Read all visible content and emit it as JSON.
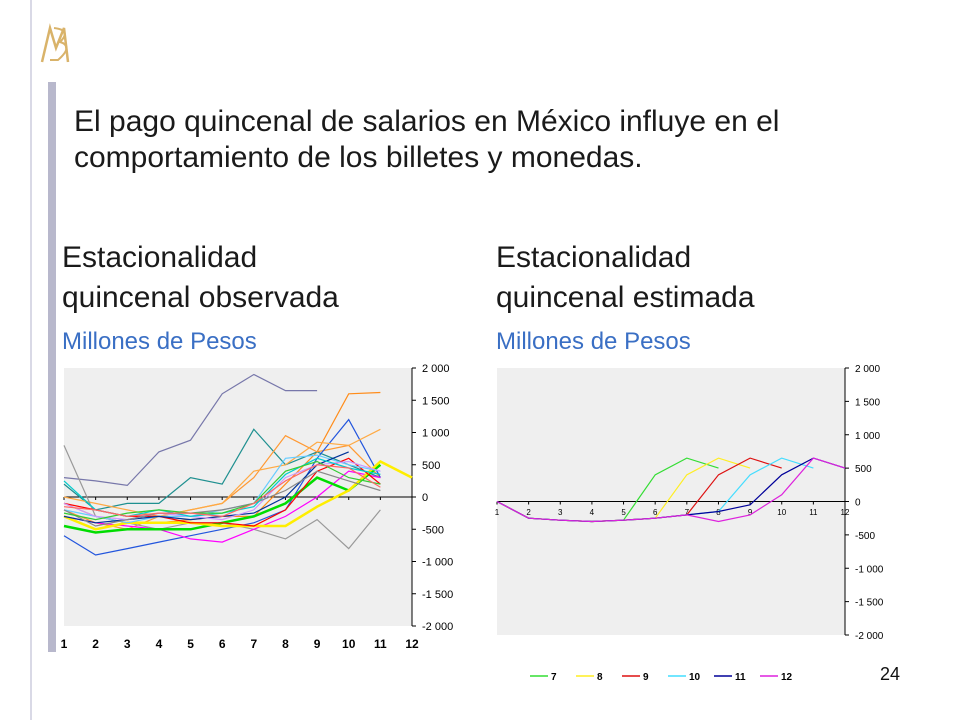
{
  "title": "El pago quincenal de salarios en México influye en el comportamiento de los billetes y monedas.",
  "left": {
    "subtitle_line1": "Estacionalidad",
    "subtitle_line2": "quincenal observada",
    "unit": "Millones de Pesos"
  },
  "right": {
    "subtitle_line1": "Estacionalidad",
    "subtitle_line2": "quincenal estimada",
    "unit": "Millones de Pesos"
  },
  "page_number": "24",
  "chart_data": [
    {
      "type": "line",
      "x": [
        1,
        2,
        3,
        4,
        5,
        6,
        7,
        8,
        9,
        10,
        11,
        12
      ],
      "ylim": [
        -2000,
        2000
      ],
      "yticks": [
        -2000,
        -1500,
        -1000,
        -500,
        0,
        500,
        1000,
        1500,
        2000
      ],
      "ytick_labels": [
        "-2 000",
        "-1 500",
        "-1 000",
        "-500",
        "0",
        "500",
        "1 000",
        "1 500",
        "2 000"
      ],
      "xtick_labels": [
        "1",
        "2",
        "3",
        "4",
        "5",
        "6",
        "7",
        "8",
        "9",
        "10",
        "11",
        "12"
      ],
      "grid": false,
      "series": [
        {
          "color": "#7777aa",
          "values": [
            300,
            250,
            180,
            700,
            880,
            1600,
            1900,
            1650,
            1650,
            null,
            null,
            null
          ]
        },
        {
          "color": "#ff8c1a",
          "values": [
            -100,
            -300,
            -400,
            -400,
            -350,
            -300,
            -300,
            200,
            700,
            1600,
            1620,
            null
          ]
        },
        {
          "color": "#1f9090",
          "values": [
            200,
            -200,
            -100,
            -100,
            300,
            200,
            1050,
            500,
            700,
            500,
            300,
            null
          ]
        },
        {
          "color": "#ff9933",
          "values": [
            -200,
            -400,
            -500,
            -300,
            -200,
            -100,
            300,
            950,
            700,
            800,
            300,
            null
          ]
        },
        {
          "color": "#2255dd",
          "values": [
            -600,
            -900,
            -800,
            -700,
            -600,
            -500,
            -400,
            -200,
            600,
            1200,
            300,
            null
          ]
        },
        {
          "color": "#ffaa44",
          "values": [
            0,
            -100,
            -200,
            -300,
            -200,
            -100,
            400,
            500,
            850,
            800,
            1050,
            null
          ]
        },
        {
          "color": "#999999",
          "values": [
            800,
            -300,
            -400,
            -500,
            -400,
            -400,
            -500,
            -650,
            -350,
            -800,
            -200,
            null
          ]
        },
        {
          "color": "#ff00ff",
          "values": [
            -300,
            -400,
            -450,
            -500,
            -650,
            -700,
            -500,
            -300,
            0,
            400,
            300,
            null
          ]
        },
        {
          "color": "#00dd00",
          "values": [
            -450,
            -550,
            -500,
            -500,
            -500,
            -400,
            -300,
            -100,
            300,
            100,
            500,
            null
          ]
        },
        {
          "color": "#ffee00",
          "values": [
            -300,
            -500,
            -400,
            -400,
            -400,
            -450,
            -450,
            -450,
            -150,
            100,
            550,
            300
          ]
        },
        {
          "color": "#ff0000",
          "values": [
            -100,
            -200,
            -300,
            -300,
            -400,
            -400,
            -450,
            -200,
            400,
            600,
            200,
            null
          ]
        },
        {
          "color": "#66ccff",
          "values": [
            -200,
            -300,
            -400,
            -300,
            -300,
            -200,
            -100,
            600,
            650,
            500,
            400,
            null
          ]
        },
        {
          "color": "#003399",
          "values": [
            -300,
            -400,
            -350,
            -300,
            -350,
            -300,
            -250,
            0,
            500,
            700,
            null,
            null
          ]
        },
        {
          "color": "#cc99ff",
          "values": [
            -100,
            -300,
            -350,
            -250,
            -300,
            -350,
            -200,
            300,
            500,
            550,
            400,
            null
          ]
        },
        {
          "color": "#888888",
          "values": [
            -200,
            -450,
            -350,
            -250,
            -250,
            -200,
            -100,
            100,
            400,
            250,
            100,
            null
          ]
        },
        {
          "color": "#00cccc",
          "values": [
            250,
            -200,
            -300,
            -200,
            -300,
            -250,
            -150,
            350,
            600,
            450,
            350,
            null
          ]
        },
        {
          "color": "#33cc33",
          "values": [
            -250,
            -350,
            -250,
            -200,
            -250,
            -250,
            -100,
            400,
            550,
            300,
            200,
            null
          ]
        },
        {
          "color": "#ff6666",
          "values": [
            -150,
            -200,
            -300,
            -250,
            -250,
            -300,
            -100,
            250,
            500,
            450,
            150,
            null
          ]
        }
      ]
    },
    {
      "type": "line",
      "x": [
        1,
        2,
        3,
        4,
        5,
        6,
        7,
        8,
        9,
        10,
        11,
        12
      ],
      "ylim": [
        -2000,
        2000
      ],
      "yticks": [
        -2000,
        -1500,
        -1000,
        -500,
        0,
        500,
        1000,
        1500,
        2000
      ],
      "ytick_labels": [
        "-2 000",
        "-1 500",
        "-1 000",
        "-500",
        "0",
        "500",
        "1 000",
        "1 500",
        "2 000"
      ],
      "xtick_labels": [
        "1",
        "2",
        "3",
        "4",
        "5",
        "6",
        "7",
        "8",
        "9",
        "10",
        "11",
        "12"
      ],
      "grid": false,
      "legend": "bottom",
      "series": [
        {
          "name": "7",
          "color": "#33dd33",
          "values": [
            0,
            -250,
            -280,
            -300,
            -280,
            400,
            650,
            500,
            null,
            null,
            null,
            null
          ]
        },
        {
          "name": "8",
          "color": "#ffee22",
          "values": [
            0,
            -250,
            -280,
            -300,
            -280,
            -250,
            400,
            650,
            500,
            null,
            null,
            null
          ]
        },
        {
          "name": "9",
          "color": "#dd1111",
          "values": [
            0,
            -250,
            -280,
            -300,
            -280,
            -250,
            -200,
            400,
            650,
            500,
            null,
            null
          ]
        },
        {
          "name": "10",
          "color": "#44ddff",
          "values": [
            0,
            -250,
            -280,
            -300,
            -280,
            -250,
            -200,
            -150,
            400,
            650,
            500,
            null
          ]
        },
        {
          "name": "11",
          "color": "#000099",
          "values": [
            0,
            -250,
            -280,
            -300,
            -280,
            -250,
            -200,
            -150,
            -50,
            400,
            650,
            500
          ]
        },
        {
          "name": "12",
          "color": "#dd22dd",
          "values": [
            0,
            -250,
            -280,
            -300,
            -280,
            -250,
            -200,
            -300,
            -200,
            100,
            650,
            500
          ]
        }
      ]
    }
  ]
}
